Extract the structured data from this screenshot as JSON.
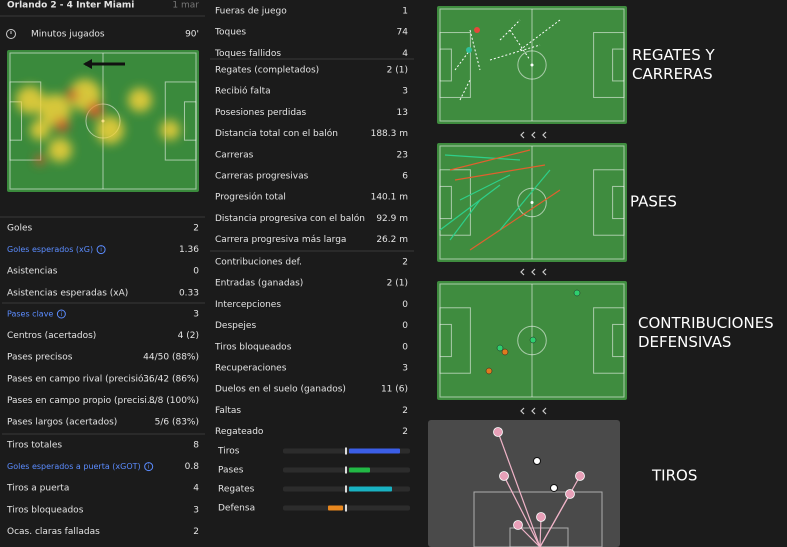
{
  "header": {
    "match": "Orlando 2 - 4 Inter Miami",
    "date": "1 mar"
  },
  "minutes": {
    "label": "Minutos jugados",
    "value": "90'"
  },
  "left_stats": [
    [
      {
        "label": "Goles",
        "value": "2"
      },
      {
        "label": "Goles esperados (xG)",
        "value": "1.36",
        "color": "#5b8cff"
      },
      {
        "label": "Asistencias",
        "value": "0"
      },
      {
        "label": "Asistencias esperadas (xA)",
        "value": "0.33"
      }
    ],
    [
      {
        "label": "Pases clave",
        "value": "3",
        "color": "#5b8cff"
      },
      {
        "label": "Centros (acertados)",
        "value": "4 (2)"
      },
      {
        "label": "Pases precisos",
        "value": "44/50 (88%)"
      },
      {
        "label": "Pases en campo rival (precisió...",
        "value": "36/42 (86%)"
      },
      {
        "label": "Pases en campo propio (precisi...",
        "value": "8/8 (100%)"
      },
      {
        "label": "Pases largos (acertados)",
        "value": "5/6 (83%)"
      }
    ],
    [
      {
        "label": "Tiros totales",
        "value": "8"
      },
      {
        "label": "Goles esperados a puerta (xGOT)",
        "value": "0.8",
        "color": "#5b8cff"
      },
      {
        "label": "Tiros a puerta",
        "value": "4"
      },
      {
        "label": "Tiros bloqueados",
        "value": "3"
      },
      {
        "label": "Ocas. claras falladas",
        "value": "2"
      }
    ]
  ],
  "middle_stats": [
    [
      {
        "label": "Fueras de juego",
        "value": "1"
      },
      {
        "label": "Toques",
        "value": "74"
      },
      {
        "label": "Toques fallidos",
        "value": "4"
      }
    ],
    [
      {
        "label": "Regates (completados)",
        "value": "2 (1)"
      },
      {
        "label": "Recibió falta",
        "value": "3"
      },
      {
        "label": "Posesiones perdidas",
        "value": "13"
      },
      {
        "label": "Distancia total con el balón",
        "value": "188.3 m"
      },
      {
        "label": "Carreras",
        "value": "23"
      },
      {
        "label": "Carreras progresivas",
        "value": "6"
      },
      {
        "label": "Progresión total",
        "value": "140.1 m"
      },
      {
        "label": "Distancia progresiva con el balón",
        "value": "92.9 m"
      },
      {
        "label": "Carrera progresiva más larga",
        "value": "26.2 m"
      }
    ],
    [
      {
        "label": "Contribuciones def.",
        "value": "2"
      },
      {
        "label": "Entradas (ganadas)",
        "value": "2 (1)"
      },
      {
        "label": "Intercepciones",
        "value": "0"
      },
      {
        "label": "Despejes",
        "value": "0"
      },
      {
        "label": "Tiros bloqueados",
        "value": "0"
      },
      {
        "label": "Recuperaciones",
        "value": "3"
      },
      {
        "label": "Duelos en el suelo (ganados)",
        "value": "11 (6)"
      },
      {
        "label": "Faltas",
        "value": "2"
      },
      {
        "label": "Regateado",
        "value": "2"
      }
    ]
  ],
  "bars": [
    {
      "label": "Tiros",
      "color": "#3b5ee6"
    },
    {
      "label": "Pases",
      "color": "#22b845"
    },
    {
      "label": "Regates",
      "color": "#19b2c2"
    },
    {
      "label": "Defensa",
      "color": "#e8871e"
    }
  ],
  "panels": [
    {
      "title_lines": [
        "REGATES Y",
        "CARRERAS"
      ]
    },
    {
      "title_lines": [
        "PASES"
      ]
    },
    {
      "title_lines": [
        "CONTRIBUCIONES",
        "DEFENSIVAS"
      ]
    },
    {
      "title_lines": [
        "TIROS"
      ]
    }
  ]
}
